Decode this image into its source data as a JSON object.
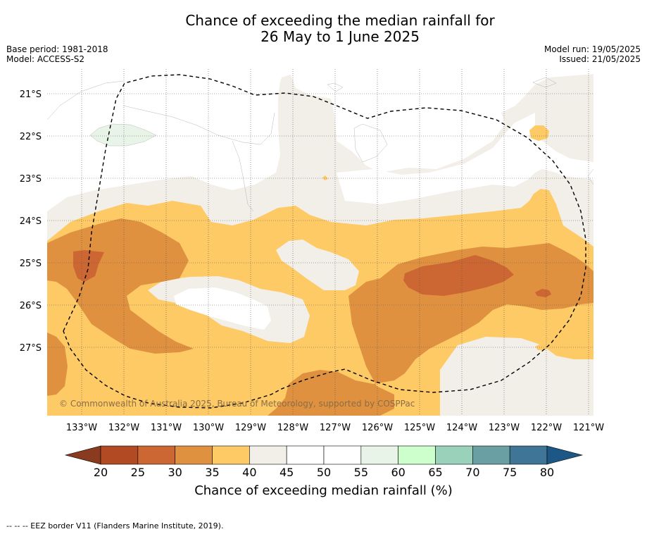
{
  "title_line1": "Chance of exceeding the median rainfall for",
  "title_line2": "26 May to 1 June 2025",
  "base_period": "Base period: 1981-2018",
  "model": "Model: ACCESS-S2",
  "model_run": "Model run: 19/05/2025",
  "issued": "Issued: 21/05/2025",
  "copyright": "© Commonwealth of Australia 2025, Bureau of Meteorology, supported by COSPPac",
  "lat_ticks": [
    "21°S",
    "22°S",
    "23°S",
    "24°S",
    "25°S",
    "26°S",
    "27°S"
  ],
  "lon_ticks": [
    "133°W",
    "132°W",
    "131°W",
    "130°W",
    "129°W",
    "128°W",
    "127°W",
    "126°W",
    "125°W",
    "124°W",
    "123°W",
    "122°W",
    "121°W"
  ],
  "colorbar": {
    "ticks": [
      "20",
      "25",
      "30",
      "35",
      "40",
      "45",
      "50",
      "55",
      "60",
      "65",
      "70",
      "75",
      "80"
    ],
    "colors": [
      "#b24b24",
      "#cc6633",
      "#e09140",
      "#fdca66",
      "#f2efe9",
      "#ffffff",
      "#ffffff",
      "#e8f4e8",
      "#ccffcc",
      "#99d1bb",
      "#6a9fa3",
      "#3f7697"
    ],
    "under_color": "#8a3b1f",
    "over_color": "#1c5786",
    "label": "Chance of exceeding median rainfall (%)"
  },
  "footer": "--  --  -- EEZ border V11 (Flanders Marine Institute, 2019)."
}
